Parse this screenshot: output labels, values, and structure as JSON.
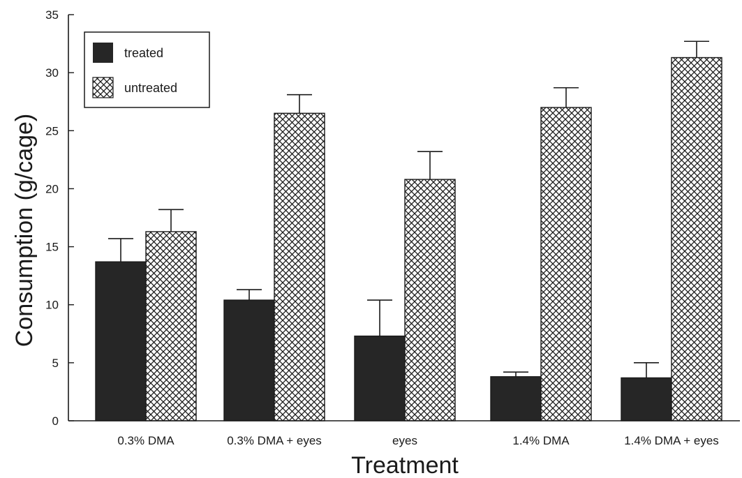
{
  "chart_data": {
    "type": "bar",
    "title": "",
    "xlabel": "Treatment",
    "ylabel": "Consumption (g/cage)",
    "ylim": [
      0,
      35
    ],
    "yticks": [
      0,
      5,
      10,
      15,
      20,
      25,
      30,
      35
    ],
    "categories": [
      "0.3% DMA",
      "0.3% DMA + eyes",
      "eyes",
      "1.4% DMA",
      "1.4% DMA + eyes"
    ],
    "series": [
      {
        "name": "treated",
        "fill": "solid",
        "color": "#262626",
        "values": [
          13.7,
          10.4,
          7.3,
          3.8,
          3.7
        ],
        "error": [
          2.0,
          0.9,
          3.1,
          0.4,
          1.3
        ]
      },
      {
        "name": "untreated",
        "fill": "crosshatch",
        "color": "#262626",
        "values": [
          16.3,
          26.5,
          20.8,
          27.0,
          31.3
        ],
        "error": [
          1.9,
          1.6,
          2.4,
          1.7,
          1.4
        ]
      }
    ],
    "legend": {
      "position": "top-left"
    },
    "grid": false
  }
}
